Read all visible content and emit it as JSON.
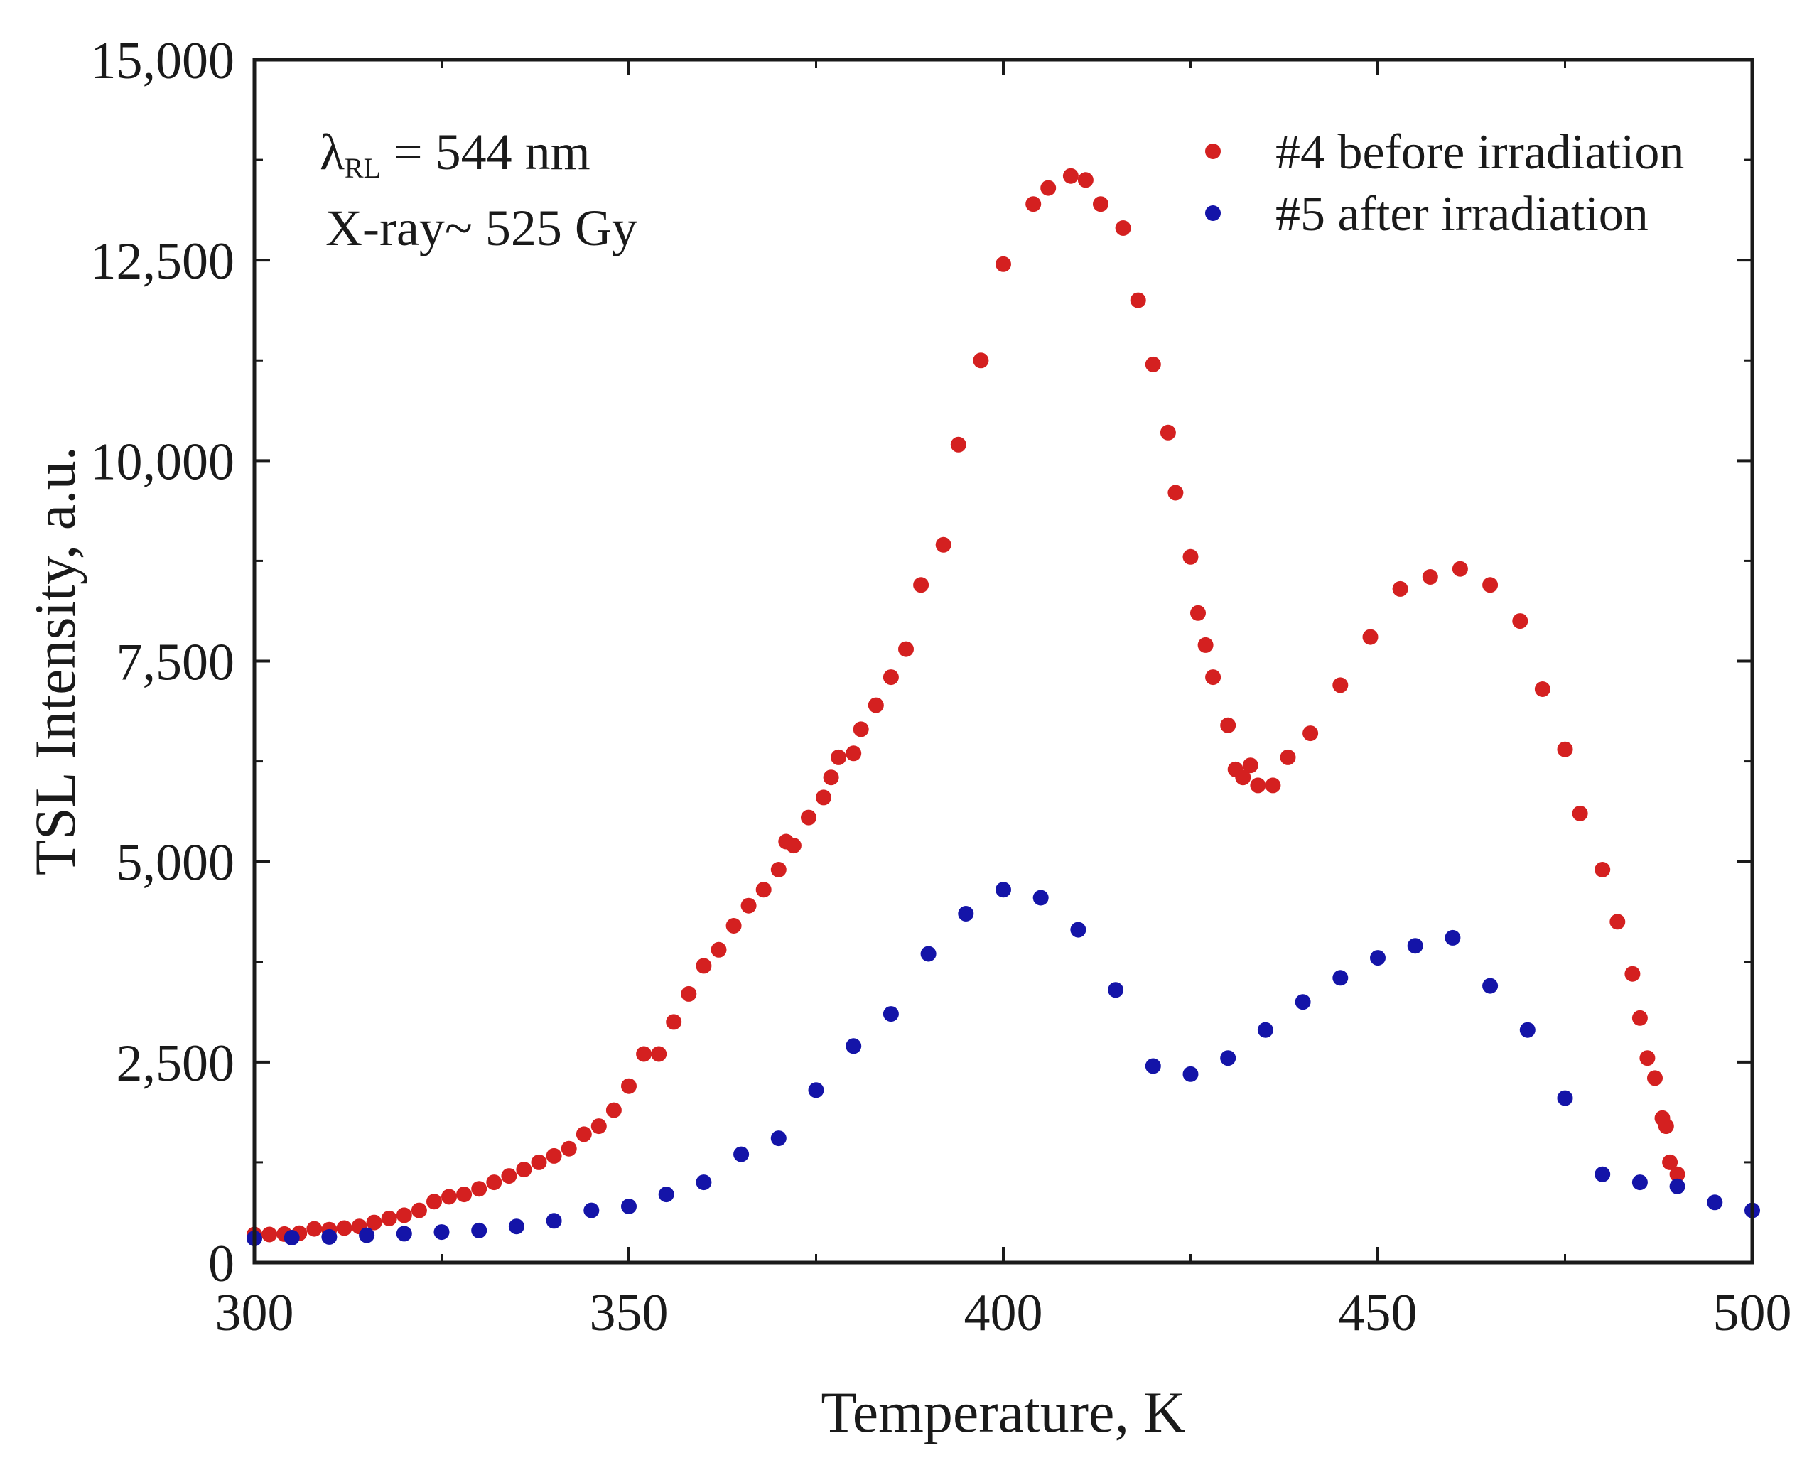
{
  "chart_data": {
    "type": "scatter",
    "title": "",
    "xlabel": "Temperature, K",
    "ylabel": "TSL Intensity, a.u.",
    "xlim": [
      300,
      500
    ],
    "ylim": [
      0,
      15000
    ],
    "x_ticks": [
      300,
      350,
      400,
      450,
      500
    ],
    "x_tick_labels": [
      "300",
      "350",
      "400",
      "450",
      "500"
    ],
    "y_ticks": [
      0,
      2500,
      5000,
      7500,
      10000,
      12500,
      15000
    ],
    "y_tick_labels": [
      "0",
      "2,500",
      "5,000",
      "7,500",
      "10,000",
      "12,500",
      "15,000"
    ],
    "annotations": {
      "lambda_symbol": "λ",
      "lambda_subscript": "RL",
      "lambda_value": " = 544 nm",
      "dose": "X-ray~ 525 Gy"
    },
    "legend_position": "top-right",
    "series": [
      {
        "name": "#4 before irradiation",
        "color": "#d42020",
        "points": [
          [
            300,
            350
          ],
          [
            302,
            350
          ],
          [
            304,
            355
          ],
          [
            306,
            365
          ],
          [
            308,
            420
          ],
          [
            310,
            410
          ],
          [
            312,
            430
          ],
          [
            314,
            450
          ],
          [
            316,
            500
          ],
          [
            318,
            550
          ],
          [
            320,
            590
          ],
          [
            322,
            650
          ],
          [
            324,
            760
          ],
          [
            326,
            820
          ],
          [
            328,
            850
          ],
          [
            330,
            920
          ],
          [
            332,
            1000
          ],
          [
            334,
            1080
          ],
          [
            336,
            1160
          ],
          [
            338,
            1250
          ],
          [
            340,
            1330
          ],
          [
            342,
            1420
          ],
          [
            344,
            1600
          ],
          [
            346,
            1700
          ],
          [
            348,
            1900
          ],
          [
            350,
            2200
          ],
          [
            352,
            2600
          ],
          [
            354,
            2600
          ],
          [
            356,
            3000
          ],
          [
            358,
            3350
          ],
          [
            360,
            3700
          ],
          [
            362,
            3900
          ],
          [
            364,
            4200
          ],
          [
            366,
            4450
          ],
          [
            368,
            4650
          ],
          [
            370,
            4900
          ],
          [
            371,
            5250
          ],
          [
            372,
            5200
          ],
          [
            374,
            5550
          ],
          [
            376,
            5800
          ],
          [
            377,
            6050
          ],
          [
            378,
            6300
          ],
          [
            380,
            6350
          ],
          [
            381,
            6650
          ],
          [
            383,
            6950
          ],
          [
            385,
            7300
          ],
          [
            387,
            7650
          ],
          [
            389,
            8450
          ],
          [
            392,
            8950
          ],
          [
            394,
            10200
          ],
          [
            397,
            11250
          ],
          [
            400,
            12450
          ],
          [
            404,
            13200
          ],
          [
            406,
            13400
          ],
          [
            409,
            13550
          ],
          [
            411,
            13500
          ],
          [
            413,
            13200
          ],
          [
            416,
            12900
          ],
          [
            418,
            12000
          ],
          [
            420,
            11200
          ],
          [
            422,
            10350
          ],
          [
            423,
            9600
          ],
          [
            425,
            8800
          ],
          [
            426,
            8100
          ],
          [
            427,
            7700
          ],
          [
            428,
            7300
          ],
          [
            430,
            6700
          ],
          [
            431,
            6150
          ],
          [
            432,
            6050
          ],
          [
            433,
            6200
          ],
          [
            434,
            5950
          ],
          [
            436,
            5950
          ],
          [
            438,
            6300
          ],
          [
            441,
            6600
          ],
          [
            445,
            7200
          ],
          [
            449,
            7800
          ],
          [
            453,
            8400
          ],
          [
            457,
            8550
          ],
          [
            461,
            8650
          ],
          [
            465,
            8450
          ],
          [
            469,
            8000
          ],
          [
            472,
            7150
          ],
          [
            475,
            6400
          ],
          [
            477,
            5600
          ],
          [
            480,
            4900
          ],
          [
            482,
            4250
          ],
          [
            484,
            3600
          ],
          [
            485,
            3050
          ],
          [
            486,
            2550
          ],
          [
            487,
            2300
          ],
          [
            488,
            1800
          ],
          [
            488.5,
            1700
          ],
          [
            489,
            1250
          ],
          [
            490,
            1100
          ]
        ]
      },
      {
        "name": "#5 after irradiation",
        "color": "#1414a8",
        "points": [
          [
            300,
            300
          ],
          [
            305,
            310
          ],
          [
            310,
            320
          ],
          [
            315,
            340
          ],
          [
            320,
            360
          ],
          [
            325,
            380
          ],
          [
            330,
            400
          ],
          [
            335,
            450
          ],
          [
            340,
            520
          ],
          [
            345,
            650
          ],
          [
            350,
            700
          ],
          [
            355,
            850
          ],
          [
            360,
            1000
          ],
          [
            365,
            1350
          ],
          [
            370,
            1550
          ],
          [
            375,
            2150
          ],
          [
            380,
            2700
          ],
          [
            385,
            3100
          ],
          [
            390,
            3850
          ],
          [
            395,
            4350
          ],
          [
            400,
            4650
          ],
          [
            405,
            4550
          ],
          [
            410,
            4150
          ],
          [
            415,
            3400
          ],
          [
            420,
            2450
          ],
          [
            425,
            2350
          ],
          [
            430,
            2550
          ],
          [
            435,
            2900
          ],
          [
            440,
            3250
          ],
          [
            445,
            3550
          ],
          [
            450,
            3800
          ],
          [
            455,
            3950
          ],
          [
            460,
            4050
          ],
          [
            465,
            3450
          ],
          [
            470,
            2900
          ],
          [
            475,
            2050
          ],
          [
            480,
            1100
          ],
          [
            485,
            1000
          ],
          [
            490,
            950
          ],
          [
            495,
            750
          ],
          [
            500,
            650
          ]
        ]
      }
    ]
  }
}
